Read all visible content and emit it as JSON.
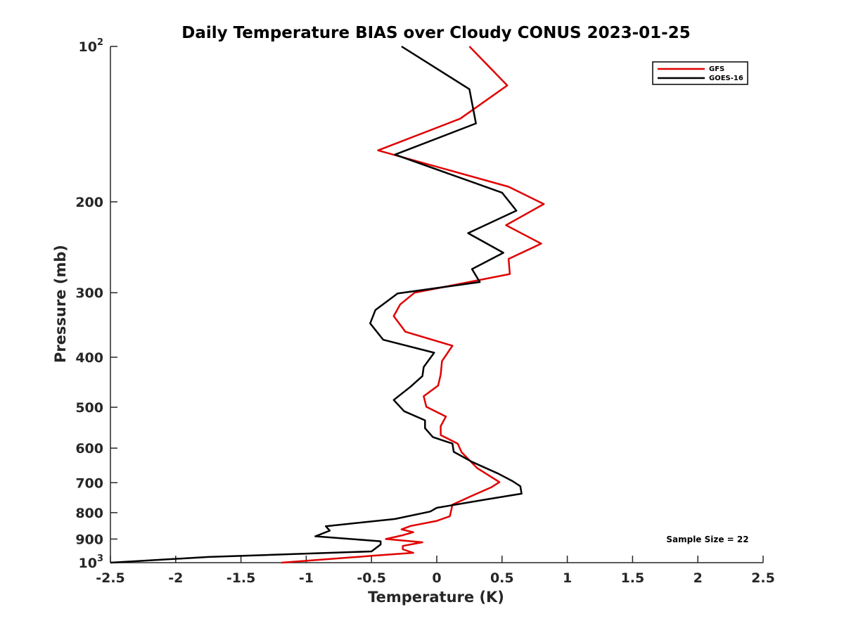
{
  "chart_data": {
    "type": "line",
    "title": "Daily Temperature BIAS over Cloudy CONUS 2023-01-25",
    "xlabel": "Temperature (K)",
    "ylabel": "Pressure (mb)",
    "xlim": [
      -2.5,
      2.5
    ],
    "ylim": [
      100,
      1000
    ],
    "y_scale": "log",
    "y_reversed": true,
    "grid": false,
    "legend_position": "top-right",
    "x_ticks": [
      -2.5,
      -2,
      -1.5,
      -1,
      -0.5,
      0,
      0.5,
      1,
      1.5,
      2,
      2.5
    ],
    "x_tick_labels": [
      "-2.5",
      "-2",
      "-1.5",
      "-1",
      "-0.5",
      "0",
      "0.5",
      "1",
      "1.5",
      "2",
      "2.5"
    ],
    "y_ticks": [
      100,
      200,
      300,
      400,
      500,
      600,
      700,
      800,
      900,
      1000
    ],
    "y_tick_labels": [
      {
        "base": "10",
        "exp": "2"
      },
      {
        "base": "200",
        "exp": ""
      },
      {
        "base": "300",
        "exp": ""
      },
      {
        "base": "400",
        "exp": ""
      },
      {
        "base": "500",
        "exp": ""
      },
      {
        "base": "600",
        "exp": ""
      },
      {
        "base": "700",
        "exp": ""
      },
      {
        "base": "800",
        "exp": ""
      },
      {
        "base": "900",
        "exp": ""
      },
      {
        "base": "10",
        "exp": "3"
      }
    ],
    "annotation": "Sample Size = 22",
    "series": [
      {
        "name": "GFS",
        "color": "#e00000",
        "points": [
          [
            0.25,
            100
          ],
          [
            0.54,
            119
          ],
          [
            0.18,
            138
          ],
          [
            -0.45,
            159
          ],
          [
            0.55,
            187
          ],
          [
            0.82,
            202
          ],
          [
            0.53,
            222
          ],
          [
            0.8,
            241
          ],
          [
            0.55,
            258
          ],
          [
            0.56,
            276
          ],
          [
            -0.17,
            300
          ],
          [
            -0.28,
            316
          ],
          [
            -0.33,
            333
          ],
          [
            -0.24,
            357
          ],
          [
            0.12,
            380
          ],
          [
            0.04,
            407
          ],
          [
            0.03,
            432
          ],
          [
            0.01,
            454
          ],
          [
            -0.1,
            476
          ],
          [
            -0.08,
            499
          ],
          [
            0.07,
            521
          ],
          [
            0.03,
            544
          ],
          [
            0.03,
            566
          ],
          [
            0.16,
            588
          ],
          [
            0.19,
            611
          ],
          [
            0.31,
            656
          ],
          [
            0.48,
            698
          ],
          [
            0.42,
            714
          ],
          [
            0.27,
            742
          ],
          [
            0.12,
            772
          ],
          [
            0.1,
            813
          ],
          [
            0.0,
            830
          ],
          [
            -0.2,
            849
          ],
          [
            -0.27,
            862
          ],
          [
            -0.18,
            873
          ],
          [
            -0.27,
            886
          ],
          [
            -0.39,
            900
          ],
          [
            -0.11,
            913
          ],
          [
            -0.26,
            928
          ],
          [
            -0.26,
            942
          ],
          [
            -0.18,
            957
          ],
          [
            -0.5,
            970
          ],
          [
            -1.19,
            1000
          ]
        ]
      },
      {
        "name": "GOES-16",
        "color": "#000000",
        "points": [
          [
            -0.27,
            100
          ],
          [
            0.25,
            121
          ],
          [
            0.3,
            141
          ],
          [
            -0.32,
            162
          ],
          [
            0.5,
            192
          ],
          [
            0.61,
            208
          ],
          [
            0.24,
            230
          ],
          [
            0.51,
            251
          ],
          [
            0.27,
            270
          ],
          [
            0.33,
            286
          ],
          [
            -0.3,
            301
          ],
          [
            -0.47,
            324
          ],
          [
            -0.51,
            344
          ],
          [
            -0.41,
            370
          ],
          [
            -0.02,
            392
          ],
          [
            -0.1,
            418
          ],
          [
            -0.11,
            435
          ],
          [
            -0.2,
            456
          ],
          [
            -0.33,
            484
          ],
          [
            -0.25,
            509
          ],
          [
            -0.09,
            530
          ],
          [
            -0.09,
            549
          ],
          [
            -0.03,
            571
          ],
          [
            0.12,
            588
          ],
          [
            0.13,
            610
          ],
          [
            0.27,
            638
          ],
          [
            0.47,
            672
          ],
          [
            0.58,
            695
          ],
          [
            0.64,
            711
          ],
          [
            0.65,
            735
          ],
          [
            0.37,
            755
          ],
          [
            0.0,
            783
          ],
          [
            -0.05,
            796
          ],
          [
            -0.32,
            823
          ],
          [
            -0.85,
            850
          ],
          [
            -0.82,
            867
          ],
          [
            -0.93,
            889
          ],
          [
            -0.43,
            909
          ],
          [
            -0.43,
            922
          ],
          [
            -0.5,
            951
          ],
          [
            -1.75,
            975
          ],
          [
            -2.5,
            1000
          ]
        ]
      }
    ]
  }
}
